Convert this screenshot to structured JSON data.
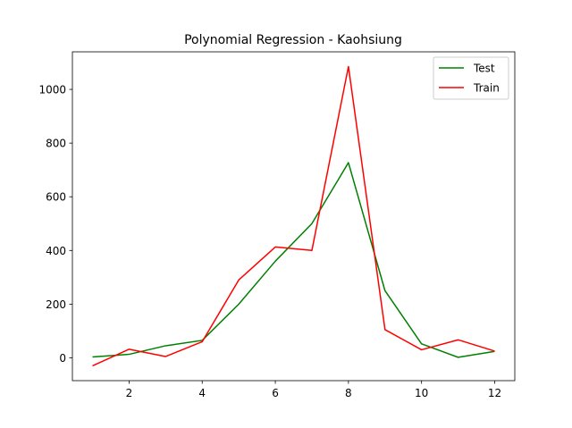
{
  "chart_data": {
    "type": "line",
    "title": "Polynomial Regression - Kaohsiung",
    "xlabel": "",
    "ylabel": "",
    "xlim": [
      0.45,
      12.55
    ],
    "ylim": [
      -85,
      1140
    ],
    "x_ticks": [
      2,
      4,
      6,
      8,
      10,
      12
    ],
    "y_ticks": [
      0,
      200,
      400,
      600,
      800,
      1000
    ],
    "grid": false,
    "legend_position": "top-right",
    "x": [
      1,
      2,
      3,
      4,
      5,
      6,
      7,
      8,
      9,
      10,
      11,
      12
    ],
    "series": [
      {
        "name": "Test",
        "color": "#008000",
        "values": [
          3,
          13,
          45,
          65,
          200,
          360,
          500,
          727,
          250,
          52,
          2,
          24
        ]
      },
      {
        "name": "Train",
        "color": "#ff0000",
        "values": [
          -30,
          32,
          5,
          60,
          290,
          413,
          400,
          1085,
          105,
          30,
          67,
          25
        ]
      }
    ]
  }
}
